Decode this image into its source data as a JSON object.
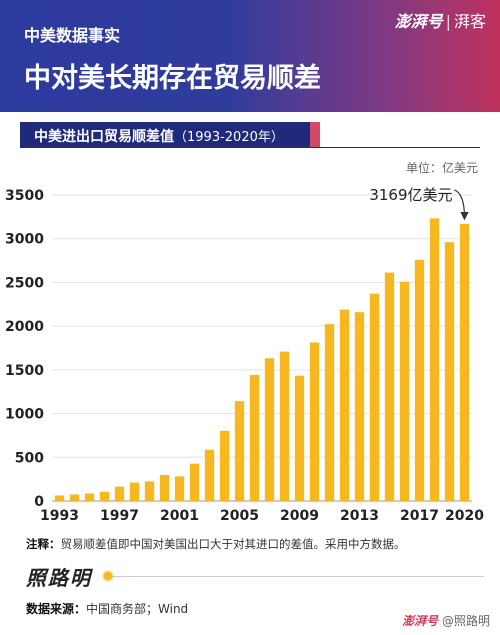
{
  "header": {
    "kicker": "中美数据事实",
    "headline": "中对美长期存在贸易顺差",
    "brand": {
      "name": "澎湃号",
      "sub": "湃客"
    }
  },
  "subtitle": {
    "main": "中美进出口贸易顺差值",
    "range": "（1993-2020年）"
  },
  "unit": "单位：亿美元",
  "colors": {
    "bar": "#f6b71f",
    "header_start": "#2d3a9e",
    "header_end": "#c0325d"
  },
  "chart_data": {
    "type": "bar",
    "title": "中美进出口贸易顺差值（1993-2020年）",
    "ylabel": "单位：亿美元",
    "categories": [
      "1993",
      "1994",
      "1995",
      "1996",
      "1997",
      "1998",
      "1999",
      "2000",
      "2001",
      "2002",
      "2003",
      "2004",
      "2005",
      "2006",
      "2007",
      "2008",
      "2009",
      "2010",
      "2011",
      "2012",
      "2013",
      "2014",
      "2015",
      "2016",
      "2017",
      "2018",
      "2019",
      "2020"
    ],
    "x_tick_labels": [
      "1993",
      "1997",
      "2001",
      "2005",
      "2009",
      "2013",
      "2017",
      "2020"
    ],
    "values": [
      63,
      75,
      86,
      105,
      164,
      211,
      225,
      298,
      281,
      427,
      586,
      802,
      1142,
      1443,
      1633,
      1709,
      1434,
      1813,
      2023,
      2189,
      2160,
      2372,
      2612,
      2508,
      2758,
      3233,
      2960,
      3169
    ],
    "ylim": [
      0,
      3500
    ],
    "y_ticks": [
      0,
      500,
      1000,
      1500,
      2000,
      2500,
      3000,
      3500
    ],
    "annotation": {
      "text": "3169亿美元",
      "category": "2020"
    }
  },
  "note": {
    "label": "注释：",
    "text": "贸易顺差值即中国对美国出口大于对其进口的差值。采用中方数据。"
  },
  "signature": "照路明",
  "source": {
    "label": "数据来源：",
    "text": "中国商务部；Wind"
  },
  "watermark": {
    "brand": "澎湃号",
    "author": "@照路明"
  }
}
